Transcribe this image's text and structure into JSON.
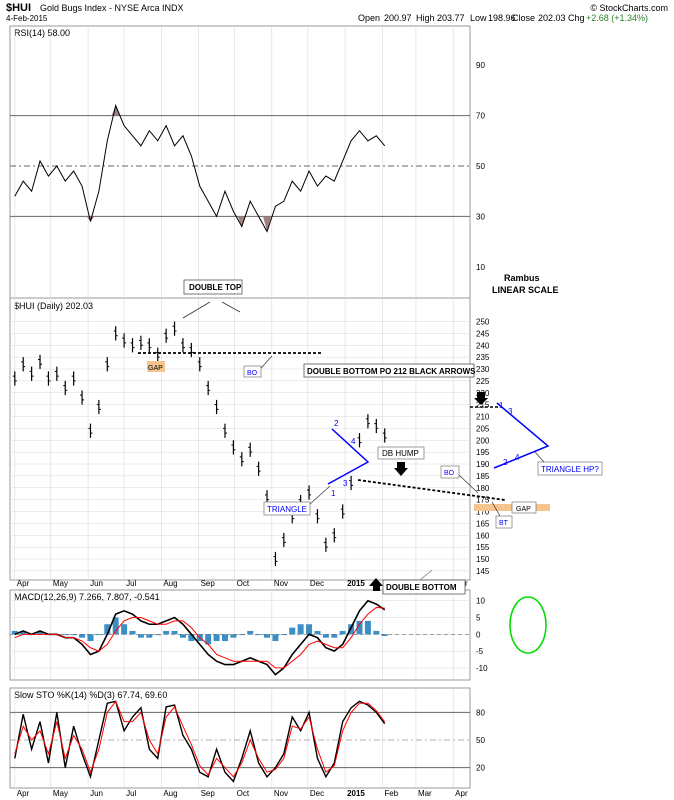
{
  "header": {
    "symbol": "$HUI",
    "name": "Gold Bugs Index - NYSE Arca INDX",
    "date": "4-Feb-2015",
    "brand": "© StockCharts.com",
    "quote": {
      "open_label": "Open",
      "open": "200.97",
      "high_label": "High",
      "high": "203.77",
      "low_label": "Low",
      "low": "198.96",
      "close_label": "Close",
      "close": "202.03",
      "chg_label": "Chg",
      "chg": "+2.68 (+1.34%)"
    }
  },
  "colors": {
    "price_bar": "#000000",
    "rsi_line": "#000000",
    "rsi_shade": "#a08080",
    "macd_line": "#000000",
    "signal_line": "#ff0000",
    "histogram": "#3b8fc4",
    "annotation_blue": "#0000ff",
    "gap_box": "#f6c58e",
    "circle": "#00dd00",
    "grid": "#d8d8d8",
    "level_line": "#666666"
  },
  "chart_data": [
    {
      "panel": "rsi",
      "type": "line",
      "title": "RSI(14) 58.00",
      "ylim": [
        0,
        100
      ],
      "yticks": [
        10,
        30,
        50,
        70,
        90
      ],
      "levels": [
        30,
        50,
        70
      ],
      "x": [
        "2014-04-01",
        "2014-04-08",
        "2014-04-15",
        "2014-04-22",
        "2014-04-29",
        "2014-05-06",
        "2014-05-13",
        "2014-05-20",
        "2014-05-27",
        "2014-06-03",
        "2014-06-10",
        "2014-06-17",
        "2014-06-24",
        "2014-07-01",
        "2014-07-08",
        "2014-07-15",
        "2014-07-22",
        "2014-07-29",
        "2014-08-05",
        "2014-08-12",
        "2014-08-19",
        "2014-08-26",
        "2014-09-02",
        "2014-09-09",
        "2014-09-16",
        "2014-09-23",
        "2014-09-30",
        "2014-10-07",
        "2014-10-14",
        "2014-10-21",
        "2014-10-28",
        "2014-11-04",
        "2014-11-11",
        "2014-11-18",
        "2014-11-25",
        "2014-12-02",
        "2014-12-09",
        "2014-12-16",
        "2014-12-23",
        "2014-12-30",
        "2015-01-06",
        "2015-01-13",
        "2015-01-20",
        "2015-01-27",
        "2015-02-03"
      ],
      "values": [
        38,
        44,
        40,
        52,
        46,
        50,
        44,
        48,
        42,
        28,
        40,
        60,
        74,
        66,
        62,
        58,
        64,
        60,
        66,
        58,
        62,
        54,
        42,
        36,
        30,
        40,
        32,
        26,
        36,
        30,
        24,
        34,
        36,
        44,
        40,
        48,
        42,
        46,
        44,
        52,
        60,
        64,
        60,
        62,
        58
      ],
      "xlabel": "",
      "ylabel": ""
    },
    {
      "panel": "price",
      "type": "bar",
      "title": "$HUI (Daily) 202.03",
      "ylim": [
        142,
        254
      ],
      "yticks": [
        145,
        150,
        155,
        160,
        165,
        170,
        175,
        180,
        185,
        190,
        195,
        200,
        205,
        210,
        215,
        220,
        225,
        230,
        235,
        240,
        245,
        250
      ],
      "x": [
        "2014-04-01",
        "2014-04-08",
        "2014-04-15",
        "2014-04-22",
        "2014-04-29",
        "2014-05-06",
        "2014-05-13",
        "2014-05-20",
        "2014-05-27",
        "2014-06-03",
        "2014-06-10",
        "2014-06-17",
        "2014-06-24",
        "2014-07-01",
        "2014-07-08",
        "2014-07-15",
        "2014-07-22",
        "2014-07-29",
        "2014-08-05",
        "2014-08-12",
        "2014-08-19",
        "2014-08-26",
        "2014-09-02",
        "2014-09-09",
        "2014-09-16",
        "2014-09-23",
        "2014-09-30",
        "2014-10-07",
        "2014-10-14",
        "2014-10-21",
        "2014-10-28",
        "2014-11-04",
        "2014-11-11",
        "2014-11-18",
        "2014-11-25",
        "2014-12-02",
        "2014-12-09",
        "2014-12-16",
        "2014-12-23",
        "2014-12-30",
        "2015-01-06",
        "2015-01-13",
        "2015-01-20",
        "2015-01-27",
        "2015-02-03"
      ],
      "values": [
        226,
        232,
        228,
        233,
        226,
        228,
        222,
        226,
        218,
        204,
        214,
        232,
        245,
        242,
        240,
        241,
        240,
        236,
        244,
        247,
        240,
        238,
        232,
        222,
        214,
        204,
        197,
        192,
        196,
        188,
        176,
        150,
        158,
        168,
        174,
        178,
        168,
        156,
        160,
        170,
        182,
        200,
        208,
        206,
        202
      ],
      "xlabel": "",
      "ylabel": ""
    },
    {
      "panel": "macd",
      "type": "line",
      "title": "MACD(12,26,9) 7.266, 7.807, -0.541",
      "ylim": [
        -13,
        12
      ],
      "yticks": [
        -10,
        -5,
        0,
        5,
        10
      ],
      "x": [
        "2014-04-01",
        "2014-04-08",
        "2014-04-15",
        "2014-04-22",
        "2014-04-29",
        "2014-05-06",
        "2014-05-13",
        "2014-05-20",
        "2014-05-27",
        "2014-06-03",
        "2014-06-10",
        "2014-06-17",
        "2014-06-24",
        "2014-07-01",
        "2014-07-08",
        "2014-07-15",
        "2014-07-22",
        "2014-07-29",
        "2014-08-05",
        "2014-08-12",
        "2014-08-19",
        "2014-08-26",
        "2014-09-02",
        "2014-09-09",
        "2014-09-16",
        "2014-09-23",
        "2014-09-30",
        "2014-10-07",
        "2014-10-14",
        "2014-10-21",
        "2014-10-28",
        "2014-11-04",
        "2014-11-11",
        "2014-11-18",
        "2014-11-25",
        "2014-12-02",
        "2014-12-09",
        "2014-12-16",
        "2014-12-23",
        "2014-12-30",
        "2015-01-06",
        "2015-01-13",
        "2015-01-20",
        "2015-01-27",
        "2015-02-03"
      ],
      "series": [
        {
          "name": "MACD(12,26,9)",
          "values": [
            0,
            1,
            0,
            1,
            0,
            0,
            -1,
            -1,
            -3,
            -6,
            -5,
            0,
            6,
            7,
            6,
            4,
            3,
            3,
            4,
            5,
            3,
            0,
            -3,
            -6,
            -8,
            -9,
            -9,
            -8,
            -7,
            -8,
            -9,
            -12,
            -10,
            -6,
            -3,
            0,
            -1,
            -4,
            -5,
            -3,
            2,
            7,
            10,
            9,
            7.3
          ]
        },
        {
          "name": "Signal",
          "values": [
            -1,
            0,
            0,
            0,
            0,
            0,
            -1,
            -1,
            -2,
            -4,
            -5,
            -3,
            1,
            4,
            5,
            5,
            4,
            3,
            3,
            4,
            4,
            2,
            -1,
            -3,
            -6,
            -7,
            -8,
            -8,
            -8,
            -8,
            -8,
            -10,
            -10,
            -8,
            -6,
            -3,
            -2,
            -3,
            -4,
            -4,
            -1,
            3,
            6,
            8,
            7.8
          ]
        }
      ],
      "xlabel": "",
      "ylabel": ""
    },
    {
      "panel": "sto",
      "type": "line",
      "title": "Slow STO %K(14) %D(3) 67.74, 69.60",
      "ylim": [
        0,
        100
      ],
      "yticks": [
        20,
        50,
        80
      ],
      "levels": [
        20,
        80
      ],
      "x": [
        "2014-04-01",
        "2014-04-08",
        "2014-04-15",
        "2014-04-22",
        "2014-04-29",
        "2014-05-06",
        "2014-05-13",
        "2014-05-20",
        "2014-05-27",
        "2014-06-03",
        "2014-06-10",
        "2014-06-17",
        "2014-06-24",
        "2014-07-01",
        "2014-07-08",
        "2014-07-15",
        "2014-07-22",
        "2014-07-29",
        "2014-08-05",
        "2014-08-12",
        "2014-08-19",
        "2014-08-26",
        "2014-09-02",
        "2014-09-09",
        "2014-09-16",
        "2014-09-23",
        "2014-09-30",
        "2014-10-07",
        "2014-10-14",
        "2014-10-21",
        "2014-10-28",
        "2014-11-04",
        "2014-11-11",
        "2014-11-18",
        "2014-11-25",
        "2014-12-02",
        "2014-12-09",
        "2014-12-16",
        "2014-12-23",
        "2014-12-30",
        "2015-01-06",
        "2015-01-13",
        "2015-01-20",
        "2015-01-27",
        "2015-02-03"
      ],
      "series": [
        {
          "name": "%K(14)",
          "values": [
            30,
            78,
            40,
            70,
            25,
            80,
            20,
            65,
            35,
            10,
            50,
            90,
            92,
            60,
            75,
            85,
            40,
            30,
            86,
            88,
            55,
            40,
            15,
            10,
            40,
            15,
            5,
            30,
            60,
            25,
            10,
            20,
            35,
            75,
            60,
            80,
            30,
            10,
            25,
            70,
            85,
            92,
            88,
            80,
            67.74
          ]
        },
        {
          "name": "%D(3)",
          "values": [
            35,
            65,
            50,
            60,
            35,
            70,
            30,
            55,
            40,
            15,
            40,
            80,
            92,
            70,
            70,
            80,
            50,
            35,
            75,
            86,
            65,
            45,
            22,
            12,
            30,
            20,
            10,
            25,
            50,
            30,
            15,
            18,
            30,
            65,
            62,
            75,
            40,
            15,
            22,
            60,
            80,
            90,
            90,
            82,
            69.6
          ]
        }
      ],
      "xlabel": "",
      "ylabel": ""
    }
  ],
  "months": [
    "Apr",
    "May",
    "Jun",
    "Jul",
    "Aug",
    "Sep",
    "Oct",
    "Nov",
    "Dec",
    "2015",
    "Feb",
    "Mar",
    "Apr"
  ],
  "annotations": {
    "author": "Rambus",
    "scale": "LINEAR SCALE",
    "double_top": "DOUBLE TOP",
    "gap1": "GAP",
    "bo1": "BO",
    "double_bottom_po": "DOUBLE BOTTOM PO 212 BLACK ARROWS",
    "triangle": "TRIANGLE",
    "db_hump": "DB HUMP",
    "bo2": "BO",
    "bt": "BT",
    "gap2": "GAP",
    "triangle_hp": "TRIANGLE HP?",
    "double_bottom": "DOUBLE BOTTOM",
    "n1": "1",
    "n2": "2",
    "n3": "3",
    "n4": "4"
  }
}
